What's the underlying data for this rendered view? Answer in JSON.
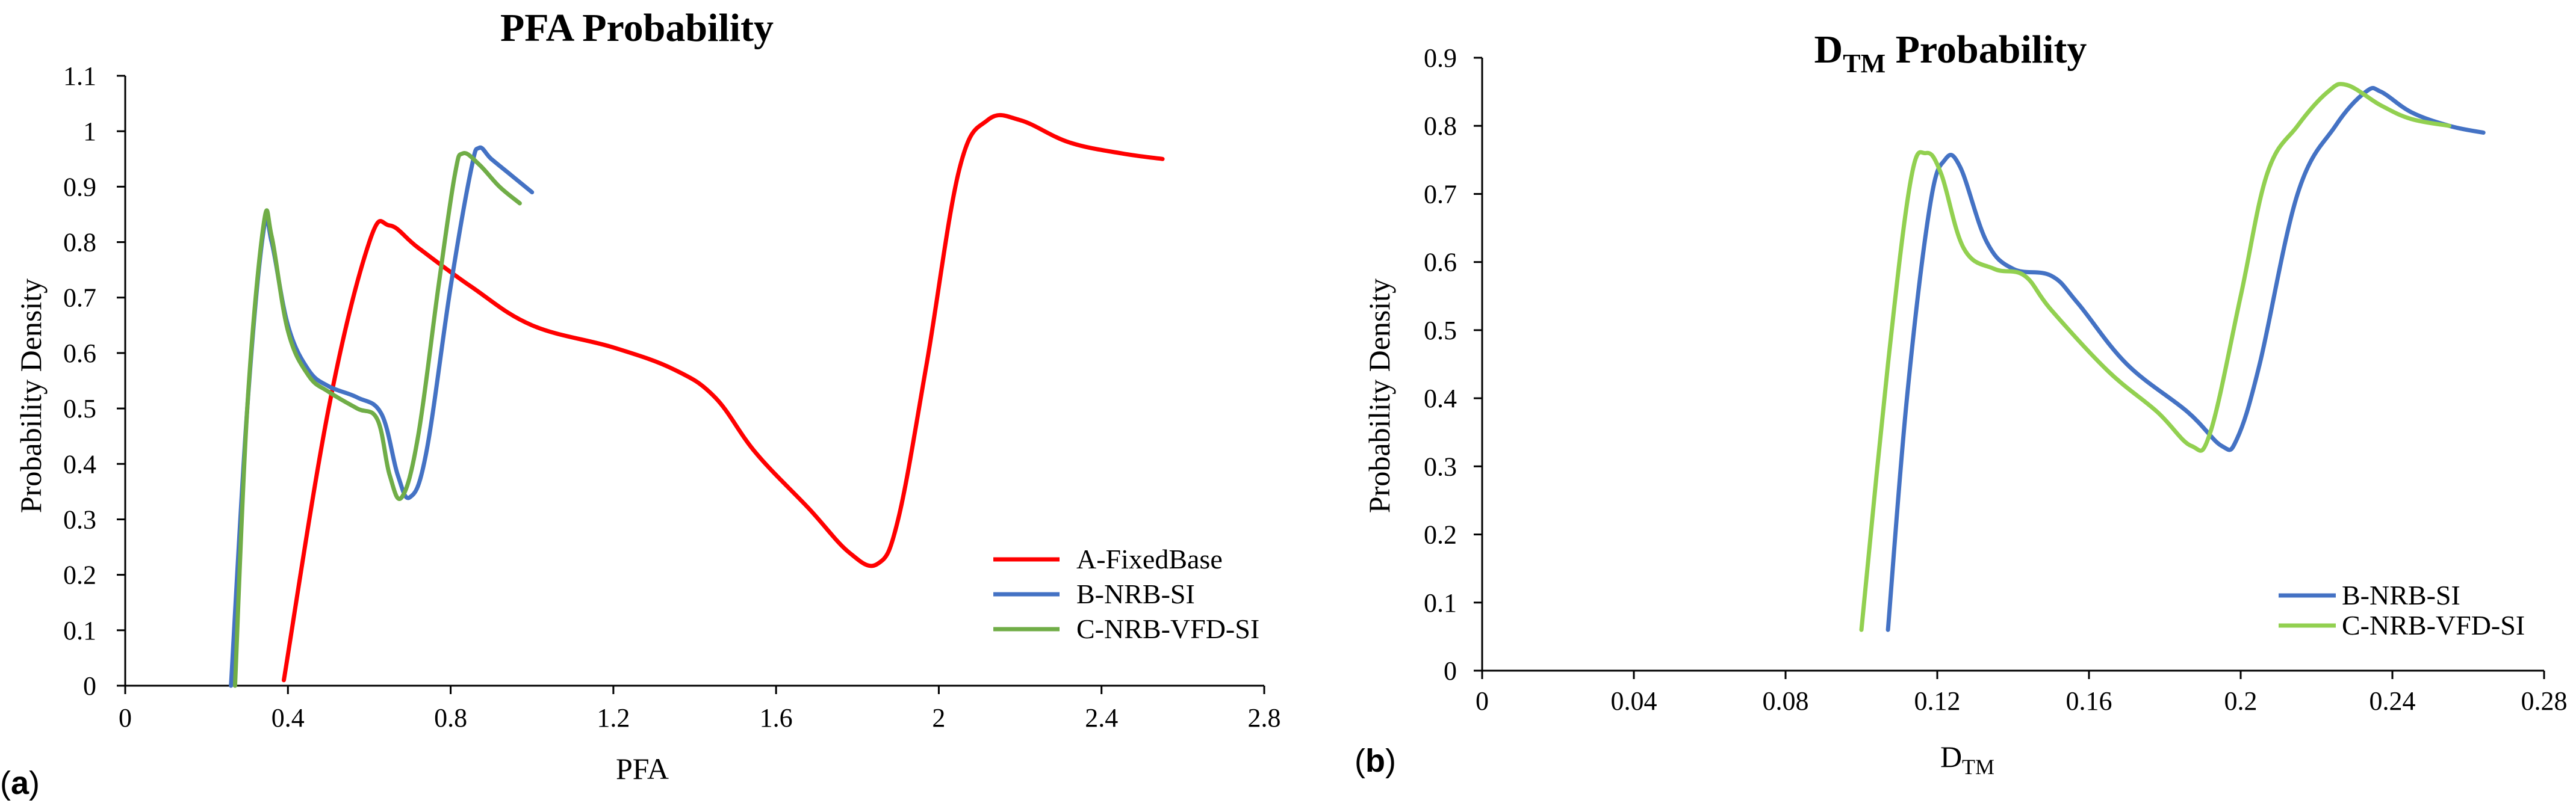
{
  "panels": {
    "a": {
      "label_open": "(",
      "label_letter": "a",
      "label_close": ")",
      "title": "PFA Probability",
      "xlabel": "PFA",
      "ylabel": "Probability Density"
    },
    "b": {
      "label_open": "(",
      "label_letter": "b",
      "label_close": ")",
      "title_main": "D",
      "title_sub": "TM",
      "title_rest": " Probability",
      "xlabel_main": "D",
      "xlabel_sub": "TM",
      "ylabel": "Probability Density"
    }
  },
  "chart_data": [
    {
      "type": "line",
      "title": "PFA Probability",
      "xlabel": "PFA",
      "ylabel": "Probability Density",
      "xlim": [
        0,
        2.8
      ],
      "ylim": [
        0,
        1.1
      ],
      "xticks": [
        "0",
        "0.4",
        "0.8",
        "1.2",
        "1.6",
        "2",
        "2.4",
        "2.8"
      ],
      "yticks": [
        "0",
        "0.1",
        "0.2",
        "0.3",
        "0.4",
        "0.5",
        "0.6",
        "0.7",
        "0.8",
        "0.9",
        "1",
        "1.1"
      ],
      "xtick_values": [
        0,
        0.4,
        0.8,
        1.2,
        1.6,
        2.0,
        2.4,
        2.8
      ],
      "ytick_values": [
        0,
        0.1,
        0.2,
        0.3,
        0.4,
        0.5,
        0.6,
        0.7,
        0.8,
        0.9,
        1.0,
        1.1
      ],
      "legend_position": "bottom-right",
      "series": [
        {
          "name": "A-FixedBase",
          "color": "#ff0000",
          "points": [
            [
              0.39,
              0.01
            ],
            [
              0.5,
              0.5
            ],
            [
              0.6,
              0.8
            ],
            [
              0.65,
              0.83
            ],
            [
              0.72,
              0.79
            ],
            [
              0.85,
              0.72
            ],
            [
              1.0,
              0.65
            ],
            [
              1.2,
              0.61
            ],
            [
              1.35,
              0.57
            ],
            [
              1.45,
              0.52
            ],
            [
              1.55,
              0.42
            ],
            [
              1.68,
              0.32
            ],
            [
              1.78,
              0.24
            ],
            [
              1.85,
              0.22
            ],
            [
              1.9,
              0.3
            ],
            [
              1.97,
              0.58
            ],
            [
              2.05,
              0.93
            ],
            [
              2.12,
              1.02
            ],
            [
              2.2,
              1.02
            ],
            [
              2.32,
              0.98
            ],
            [
              2.45,
              0.96
            ],
            [
              2.55,
              0.95
            ]
          ]
        },
        {
          "name": "B-NRB-SI",
          "color": "#4472c4",
          "points": [
            [
              0.26,
              0.0
            ],
            [
              0.3,
              0.5
            ],
            [
              0.34,
              0.82
            ],
            [
              0.36,
              0.8
            ],
            [
              0.4,
              0.65
            ],
            [
              0.45,
              0.57
            ],
            [
              0.5,
              0.54
            ],
            [
              0.57,
              0.52
            ],
            [
              0.63,
              0.49
            ],
            [
              0.67,
              0.38
            ],
            [
              0.7,
              0.34
            ],
            [
              0.74,
              0.42
            ],
            [
              0.8,
              0.72
            ],
            [
              0.85,
              0.93
            ],
            [
              0.87,
              0.97
            ],
            [
              0.9,
              0.95
            ],
            [
              0.95,
              0.92
            ],
            [
              1.0,
              0.89
            ]
          ]
        },
        {
          "name": "C-NRB-VFD-SI",
          "color": "#70ad47",
          "points": [
            [
              0.27,
              0.0
            ],
            [
              0.3,
              0.5
            ],
            [
              0.34,
              0.83
            ],
            [
              0.36,
              0.81
            ],
            [
              0.4,
              0.64
            ],
            [
              0.45,
              0.56
            ],
            [
              0.5,
              0.53
            ],
            [
              0.57,
              0.5
            ],
            [
              0.62,
              0.48
            ],
            [
              0.65,
              0.38
            ],
            [
              0.68,
              0.34
            ],
            [
              0.72,
              0.45
            ],
            [
              0.77,
              0.72
            ],
            [
              0.81,
              0.92
            ],
            [
              0.83,
              0.96
            ],
            [
              0.87,
              0.94
            ],
            [
              0.92,
              0.9
            ],
            [
              0.97,
              0.87
            ]
          ]
        }
      ]
    },
    {
      "type": "line",
      "title": "DTM Probability",
      "xlabel": "DTM",
      "ylabel": "Probability Density",
      "xlim": [
        0,
        0.28
      ],
      "ylim": [
        0,
        0.9
      ],
      "xticks": [
        "0",
        "0.04",
        "0.08",
        "0.12",
        "0.16",
        "0.2",
        "0.24",
        "0.28"
      ],
      "yticks": [
        "0",
        "0.1",
        "0.2",
        "0.3",
        "0.4",
        "0.5",
        "0.6",
        "0.7",
        "0.8",
        "0.9"
      ],
      "xtick_values": [
        0,
        0.04,
        0.08,
        0.12,
        0.16,
        0.2,
        0.24,
        0.28
      ],
      "ytick_values": [
        0,
        0.1,
        0.2,
        0.3,
        0.4,
        0.5,
        0.6,
        0.7,
        0.8,
        0.9
      ],
      "legend_position": "bottom-right",
      "series": [
        {
          "name": "B-NRB-SI",
          "color": "#4472c4",
          "points": [
            [
              0.107,
              0.06
            ],
            [
              0.112,
              0.4
            ],
            [
              0.118,
              0.68
            ],
            [
              0.122,
              0.75
            ],
            [
              0.126,
              0.74
            ],
            [
              0.133,
              0.63
            ],
            [
              0.14,
              0.59
            ],
            [
              0.15,
              0.58
            ],
            [
              0.157,
              0.54
            ],
            [
              0.17,
              0.45
            ],
            [
              0.186,
              0.38
            ],
            [
              0.195,
              0.33
            ],
            [
              0.199,
              0.34
            ],
            [
              0.205,
              0.45
            ],
            [
              0.215,
              0.7
            ],
            [
              0.225,
              0.8
            ],
            [
              0.233,
              0.85
            ],
            [
              0.237,
              0.85
            ],
            [
              0.245,
              0.82
            ],
            [
              0.255,
              0.8
            ],
            [
              0.264,
              0.79
            ]
          ]
        },
        {
          "name": "C-NRB-VFD-SI",
          "color": "#92d050",
          "points": [
            [
              0.1,
              0.06
            ],
            [
              0.107,
              0.45
            ],
            [
              0.113,
              0.72
            ],
            [
              0.117,
              0.76
            ],
            [
              0.121,
              0.73
            ],
            [
              0.127,
              0.62
            ],
            [
              0.135,
              0.59
            ],
            [
              0.143,
              0.58
            ],
            [
              0.15,
              0.53
            ],
            [
              0.165,
              0.44
            ],
            [
              0.178,
              0.38
            ],
            [
              0.187,
              0.33
            ],
            [
              0.192,
              0.35
            ],
            [
              0.2,
              0.55
            ],
            [
              0.207,
              0.73
            ],
            [
              0.215,
              0.8
            ],
            [
              0.223,
              0.85
            ],
            [
              0.228,
              0.86
            ],
            [
              0.237,
              0.83
            ],
            [
              0.245,
              0.81
            ],
            [
              0.255,
              0.8
            ]
          ]
        }
      ]
    }
  ]
}
